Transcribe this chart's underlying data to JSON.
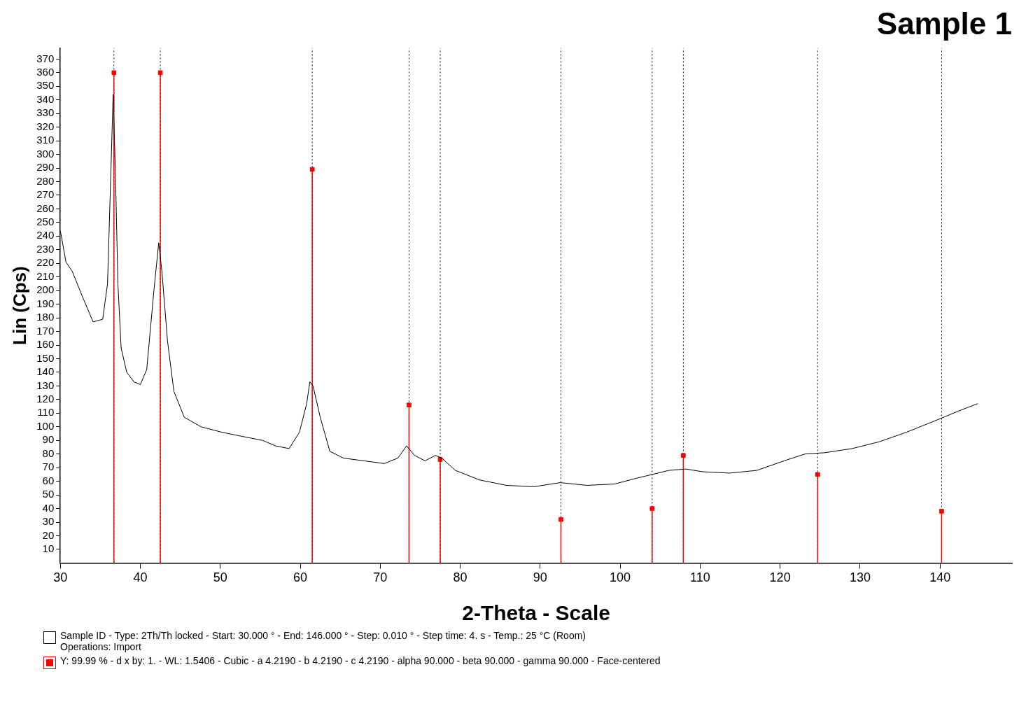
{
  "chart_data": {
    "type": "line",
    "title": "Sample 1",
    "xlabel": "2-Theta - Scale",
    "ylabel": "Lin (Cps)",
    "xlim": [
      30,
      149
    ],
    "ylim": [
      0,
      378
    ],
    "xticks": [
      30,
      40,
      50,
      60,
      70,
      80,
      90,
      100,
      110,
      120,
      130,
      140
    ],
    "yticks": [
      10,
      20,
      30,
      40,
      50,
      60,
      70,
      80,
      90,
      100,
      110,
      120,
      130,
      140,
      150,
      160,
      170,
      180,
      190,
      200,
      210,
      220,
      230,
      240,
      250,
      260,
      270,
      280,
      290,
      300,
      310,
      320,
      330,
      340,
      350,
      360,
      370
    ],
    "grid": false,
    "legend": "bottom",
    "marker": "none",
    "series": [
      {
        "name": "Sample ID - Type: 2Th/Th locked - Start: 30.000 ° - End: 146.000 ° - Step: 0.010 ° - Step time: 4. s - Temp.: 25 °C (Room)\nOperations: Import",
        "color": "#000000",
        "x": [
          30,
          30.7,
          31.5,
          32.8,
          34.1,
          35.3,
          35.9,
          36.3,
          36.6,
          36.9,
          37.2,
          37.6,
          38.3,
          39.2,
          40.0,
          40.8,
          41.7,
          42.3,
          42.7,
          43.4,
          44.2,
          45.5,
          47.6,
          50.2,
          52.7,
          55.3,
          56.9,
          58.6,
          59.9,
          60.8,
          61.2,
          61.6,
          62.5,
          63.7,
          65.4,
          68.0,
          70.5,
          72.2,
          73.3,
          74.3,
          75.6,
          76.9,
          77.7,
          79.4,
          82.4,
          85.8,
          89.2,
          92.5,
          95.9,
          99.3,
          101.9,
          104.0,
          106.1,
          108.2,
          110.3,
          113.7,
          117.1,
          120.5,
          123.1,
          125.6,
          129.0,
          132.4,
          135.8,
          139.2,
          142.5,
          144.7
        ],
        "values": [
          244,
          221,
          214,
          195,
          177,
          179,
          205,
          283,
          344,
          283,
          205,
          158,
          140,
          133,
          131,
          142,
          200,
          235,
          214,
          163,
          126,
          107,
          100,
          96,
          93,
          90,
          86,
          84,
          96,
          117,
          133,
          130,
          107,
          82,
          77,
          75,
          73,
          77,
          86,
          79,
          75,
          79,
          77,
          68,
          61,
          57,
          56,
          59,
          57,
          58,
          62,
          65,
          68,
          69,
          67,
          66,
          68,
          75,
          80,
          81,
          84,
          89,
          96,
          104,
          112,
          117
        ]
      },
      {
        "type": "lollipop",
        "name": "Y: 99.99 % - d x by: 1. - WL: 1.5406 - Cubic - a 4.2190 - b 4.2190 - c 4.2190 - alpha 90.000 - beta 90.000 - gamma 90.000 - Face-centered",
        "color": "#ff0000",
        "marker": "square",
        "x": [
          36.7,
          42.5,
          61.5,
          73.6,
          77.5,
          92.6,
          104.0,
          107.9,
          124.7,
          140.2
        ],
        "values": [
          360,
          360,
          289,
          116,
          76,
          32,
          40,
          79,
          65,
          38
        ]
      }
    ],
    "ref_lines": [
      {
        "axis": "x",
        "value": 36.7,
        "color": "#000000",
        "line_style": "dotted"
      },
      {
        "axis": "x",
        "value": 42.5,
        "color": "#000000",
        "line_style": "dotted"
      },
      {
        "axis": "x",
        "value": 61.5,
        "color": "#000000",
        "line_style": "dotted"
      },
      {
        "axis": "x",
        "value": 73.6,
        "color": "#000000",
        "line_style": "dotted"
      },
      {
        "axis": "x",
        "value": 77.5,
        "color": "#000000",
        "line_style": "dotted"
      },
      {
        "axis": "x",
        "value": 92.6,
        "color": "#000000",
        "line_style": "dotted"
      },
      {
        "axis": "x",
        "value": 104.0,
        "color": "#000000",
        "line_style": "dotted"
      },
      {
        "axis": "x",
        "value": 107.9,
        "color": "#000000",
        "line_style": "dotted"
      },
      {
        "axis": "x",
        "value": 124.7,
        "color": "#000000",
        "line_style": "dotted"
      },
      {
        "axis": "x",
        "value": 140.2,
        "color": "#000000",
        "line_style": "dotted"
      }
    ]
  }
}
